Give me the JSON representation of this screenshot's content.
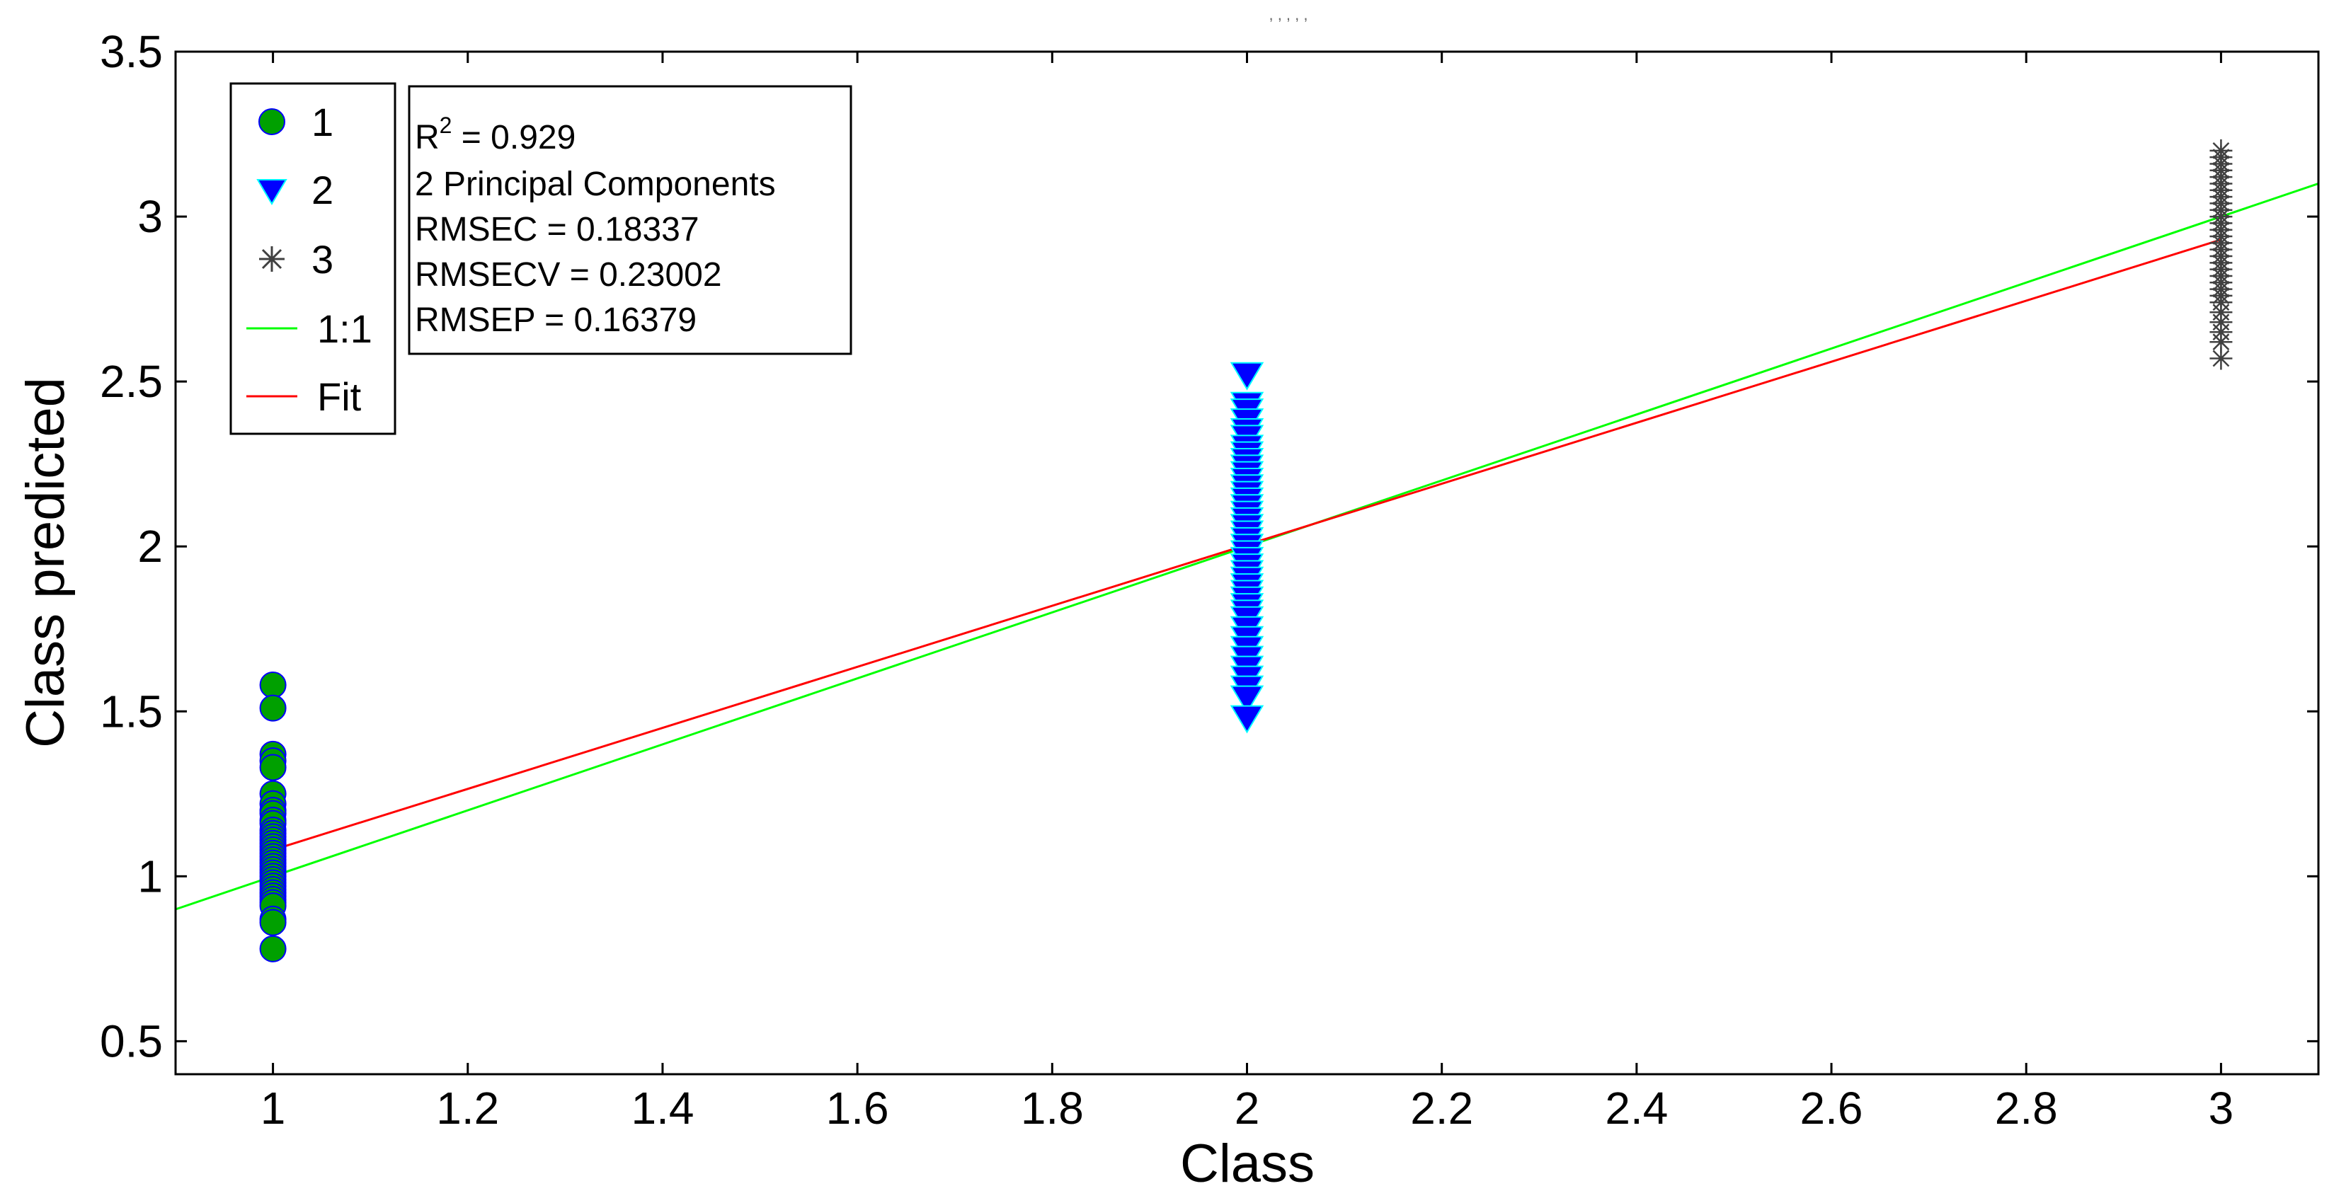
{
  "chart_data": {
    "type": "scatter",
    "title": ", ,   ,                , ,",
    "xlabel": "Class",
    "ylabel": "Class predicted",
    "xlim": [
      0.9,
      3.1
    ],
    "ylim": [
      0.4,
      3.5
    ],
    "xticks": [
      "1",
      "1.2",
      "1.4",
      "1.6",
      "1.8",
      "2",
      "2.2",
      "2.4",
      "2.6",
      "2.8",
      "3"
    ],
    "yticks": [
      "0.5",
      "1",
      "1.5",
      "2",
      "2.5",
      "3",
      "3.5"
    ],
    "grid": false,
    "legend_position": "top-left",
    "series": [
      {
        "name": "1",
        "marker": "circle",
        "color": "#00a000",
        "edge_color": "#0000ff",
        "x": 1,
        "y": [
          1.58,
          1.51,
          1.37,
          1.35,
          1.33,
          1.25,
          1.22,
          1.2,
          1.19,
          1.17,
          1.16,
          1.14,
          1.13,
          1.12,
          1.11,
          1.1,
          1.09,
          1.08,
          1.07,
          1.06,
          1.05,
          1.04,
          1.03,
          1.02,
          1.01,
          1.0,
          0.99,
          0.98,
          0.97,
          0.96,
          0.95,
          0.94,
          0.93,
          0.92,
          0.91,
          0.87,
          0.86,
          0.78
        ]
      },
      {
        "name": "2",
        "marker": "triangle-down",
        "color": "#0000ff",
        "edge_color": "#00ffff",
        "x": 2,
        "y": [
          2.52,
          2.43,
          2.41,
          2.38,
          2.35,
          2.33,
          2.3,
          2.28,
          2.26,
          2.24,
          2.22,
          2.2,
          2.18,
          2.16,
          2.14,
          2.12,
          2.1,
          2.08,
          2.06,
          2.04,
          2.02,
          2.0,
          1.98,
          1.96,
          1.94,
          1.92,
          1.9,
          1.88,
          1.86,
          1.84,
          1.82,
          1.8,
          1.78,
          1.75,
          1.72,
          1.69,
          1.66,
          1.63,
          1.6,
          1.57,
          1.54,
          1.48
        ]
      },
      {
        "name": "3",
        "marker": "asterisk",
        "color": "#404040",
        "x": 3,
        "y": [
          3.2,
          3.18,
          3.16,
          3.14,
          3.12,
          3.1,
          3.08,
          3.06,
          3.04,
          3.02,
          3.0,
          2.98,
          2.96,
          2.94,
          2.92,
          2.9,
          2.88,
          2.86,
          2.84,
          2.82,
          2.8,
          2.78,
          2.76,
          2.74,
          2.71,
          2.68,
          2.65,
          2.62,
          2.57
        ]
      }
    ],
    "lines": [
      {
        "name": "1:1",
        "color": "#00ff00",
        "x": [
          0.9,
          3.1
        ],
        "y": [
          0.9,
          3.1
        ]
      },
      {
        "name": "Fit",
        "color": "#ff0000",
        "x": [
          1,
          3
        ],
        "y": [
          1.08,
          2.93
        ]
      }
    ],
    "stats": {
      "r2_prefix": "R",
      "r2_sup": "2",
      "r2_value": " = 0.929",
      "lines": [
        "2 Principal Components",
        "RMSEC = 0.18337",
        "RMSECV = 0.23002",
        "RMSEP = 0.16379"
      ]
    }
  }
}
